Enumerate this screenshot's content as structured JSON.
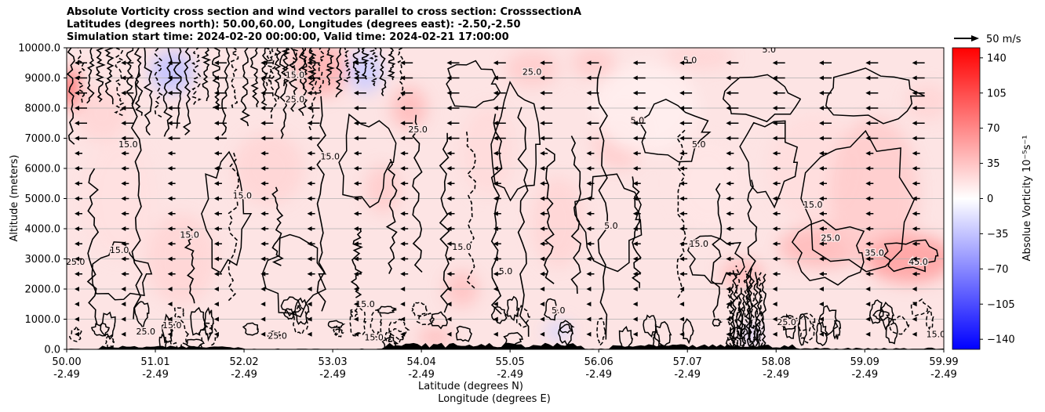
{
  "title_lines": [
    "Absolute Vorticity cross section and wind vectors parallel to cross section: CrosssectionA",
    "Latitudes (degrees north): 50.00,60.00, Longitudes (degrees east): -2.50,-2.50",
    "Simulation start time: 2024-02-20 00:00:00, Valid time: 2024-02-21 17:00:00"
  ],
  "chart_data": {
    "type": "heatmap",
    "ylabel": "Altitude (meters)",
    "xlabel_lines": [
      "Latitude (degrees N)",
      "Longitude (degrees E)"
    ],
    "x_ticks": [
      {
        "lat": "50.00",
        "lon": "-2.49"
      },
      {
        "lat": "51.01",
        "lon": "-2.49"
      },
      {
        "lat": "52.02",
        "lon": "-2.49"
      },
      {
        "lat": "53.03",
        "lon": "-2.49"
      },
      {
        "lat": "54.04",
        "lon": "-2.49"
      },
      {
        "lat": "55.05",
        "lon": "-2.49"
      },
      {
        "lat": "56.06",
        "lon": "-2.49"
      },
      {
        "lat": "57.07",
        "lon": "-2.49"
      },
      {
        "lat": "58.08",
        "lon": "-2.49"
      },
      {
        "lat": "59.09",
        "lon": "-2.49"
      },
      {
        "lat": "59.99",
        "lon": "-2.49"
      }
    ],
    "xlim": [
      50.0,
      59.99
    ],
    "y_ticks": [
      "0.0",
      "1000.0",
      "2000.0",
      "3000.0",
      "4000.0",
      "5000.0",
      "6000.0",
      "7000.0",
      "8000.0",
      "9000.0",
      "10000.0"
    ],
    "ylim": [
      0,
      10000
    ],
    "grid": "horizontal",
    "colorbar": {
      "label": "Absolue Vorticity 10⁻⁵s⁻¹",
      "ticks": [
        "140",
        "105",
        "70",
        "35",
        "0",
        "−35",
        "−70",
        "−105",
        "−140"
      ],
      "range": [
        -150,
        150
      ],
      "colormap": "bwr",
      "colors": {
        "min": "#0000ff",
        "mid": "#ffffff",
        "max": "#ff0000"
      }
    },
    "vector_key": "50 m/s",
    "wind_direction": "southward (arrows point toward decreasing latitude)",
    "contour_levels_labeled": [
      "5.0",
      "15.0",
      "25.0",
      "35.0",
      "45.0"
    ],
    "field_description_values": {
      "background_vorticity_typical": 15,
      "east_band_2000_4000m": 40
    }
  }
}
